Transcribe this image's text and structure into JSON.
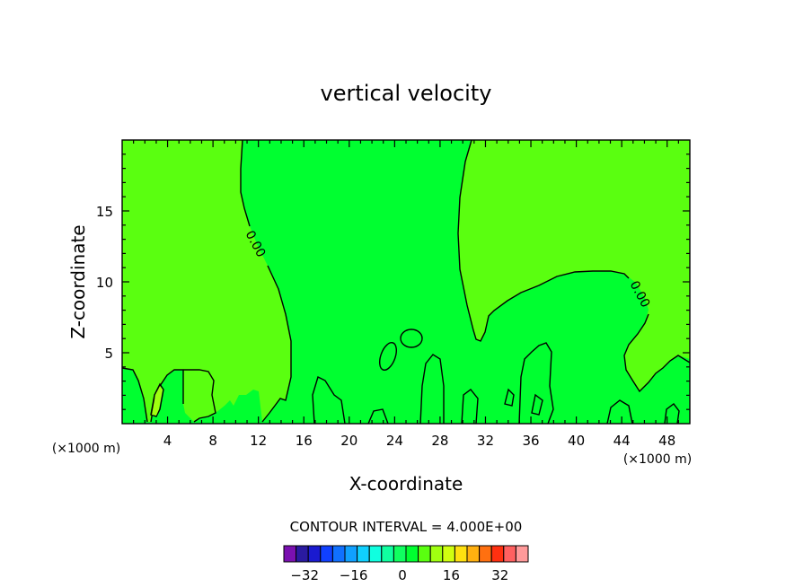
{
  "chart_data": {
    "type": "contour",
    "title": "vertical velocity",
    "xlabel": "X-coordinate",
    "ylabel": "Z-coordinate",
    "x_unit": "(×1000 m)",
    "x_ticks": [
      4,
      8,
      12,
      16,
      20,
      24,
      28,
      32,
      36,
      40,
      44,
      48
    ],
    "y_ticks": [
      5,
      10,
      15
    ],
    "xlim": [
      0,
      50
    ],
    "ylim": [
      0,
      20
    ],
    "contour_label": "0.00",
    "contour_interval_text": "CONTOUR INTERVAL = 4.000E+00",
    "colorbar": {
      "tick_labels": [
        "-32",
        "-16",
        "0",
        "16",
        "32"
      ],
      "tick_values": [
        -32,
        -16,
        0,
        16,
        32
      ],
      "levels": [
        -36,
        -32,
        -28,
        -24,
        -20,
        -16,
        -12,
        -8,
        -4,
        0,
        4,
        8,
        12,
        16,
        20,
        24,
        28,
        32,
        36
      ],
      "colors": [
        "#7a10b0",
        "#2a1aa0",
        "#1a1ad0",
        "#1040ff",
        "#1070ff",
        "#10a0ff",
        "#10d0ff",
        "#10ffe0",
        "#10ffa0",
        "#10ff60",
        "#00ff30",
        "#5aff10",
        "#a0ff10",
        "#d0ff10",
        "#ffe010",
        "#ffb010",
        "#ff7010",
        "#ff3010",
        "#ff6060",
        "#ff9a9a"
      ]
    },
    "fill_colors": {
      "positive": "#5aff10",
      "near_zero": "#00ff30",
      "small_positive_spot": "#a0ff10"
    }
  }
}
